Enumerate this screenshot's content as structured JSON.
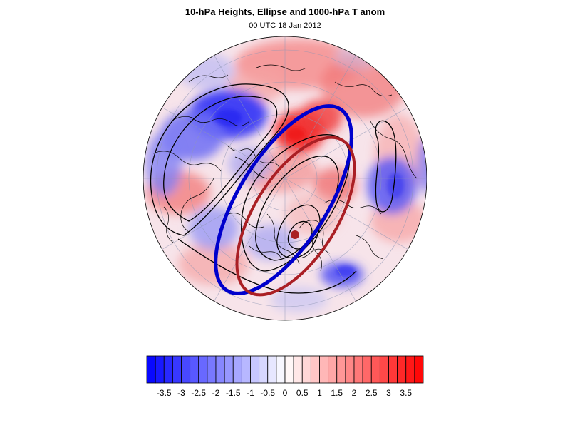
{
  "header": {
    "title": "10-hPa Heights, Ellipse and 1000-hPa T anom",
    "subtitle": "00 UTC 18 Jan 2012"
  },
  "colors": {
    "ellipse_blue": "#0000cc",
    "ellipse_red": "#aa1f24",
    "anom_min": "#0000ff",
    "anom_max": "#ff0000",
    "contour": "#000000"
  },
  "colorbar": {
    "levels": [
      -4,
      -3.75,
      -3.5,
      -3.25,
      -3,
      -2.75,
      -2.5,
      -2.25,
      -2,
      -1.75,
      -1.5,
      -1.25,
      -1,
      -0.75,
      -0.5,
      -0.25,
      0,
      0.25,
      0.5,
      0.75,
      1,
      1.25,
      1.5,
      1.75,
      2,
      2.25,
      2.5,
      2.75,
      3,
      3.25,
      3.5,
      3.75,
      4
    ],
    "labels": [
      "-3.5",
      "-3",
      "-2.5",
      "-2",
      "-1.5",
      "-1",
      "-0.5",
      "0",
      "0.5",
      "1",
      "1.5",
      "2",
      "2.5",
      "3",
      "3.5"
    ]
  }
}
